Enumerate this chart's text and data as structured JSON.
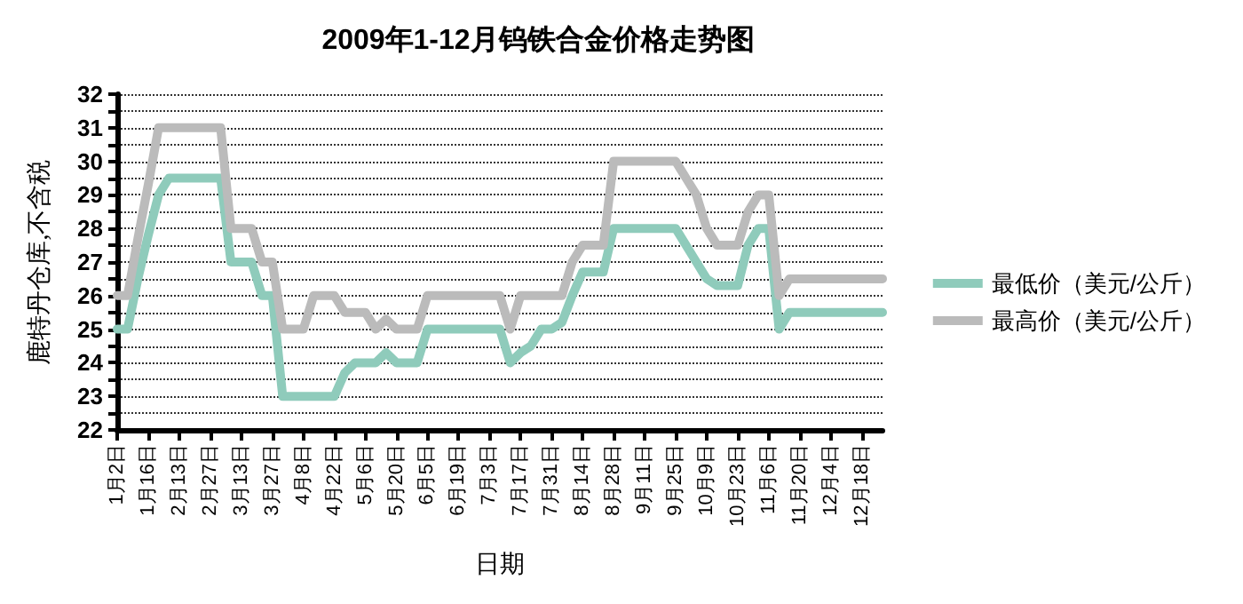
{
  "chart_data": {
    "type": "line",
    "title": "2009年1-12月钨铁合金价格走势图",
    "xlabel": "日期",
    "ylabel": "鹿特丹仓库,不含税",
    "categories": [
      "1月2日",
      null,
      null,
      "1月16日",
      null,
      null,
      "2月13日",
      null,
      null,
      "2月27日",
      null,
      null,
      "3月13日",
      null,
      null,
      "3月27日",
      null,
      null,
      "4月8日",
      null,
      null,
      "4月22日",
      null,
      null,
      "5月6日",
      null,
      null,
      "5月20日",
      null,
      null,
      "6月5日",
      null,
      null,
      "6月19日",
      null,
      null,
      "7月3日",
      null,
      null,
      "7月17日",
      null,
      null,
      "7月31日",
      null,
      null,
      "8月14日",
      null,
      null,
      "8月28日",
      null,
      null,
      "9月11日",
      null,
      null,
      "9月25日",
      null,
      null,
      "10月9日",
      null,
      null,
      "10月23日",
      null,
      null,
      "11月6日",
      null,
      null,
      "11月20日",
      null,
      null,
      "12月4日",
      null,
      null,
      "12月18日",
      null,
      null
    ],
    "series": [
      {
        "name": "最低价（美元/公斤）",
        "color": "#8fcbbb",
        "values": [
          25,
          25,
          26.5,
          27.8,
          29,
          29.5,
          29.5,
          29.5,
          29.5,
          29.5,
          29.5,
          27,
          27,
          27,
          26,
          26,
          23,
          23,
          23,
          23,
          23,
          23,
          23.7,
          24,
          24,
          24,
          24.3,
          24,
          24,
          24,
          25,
          25,
          25,
          25,
          25,
          25,
          25,
          25,
          24,
          24.3,
          24.5,
          25,
          25,
          25.2,
          26,
          26.7,
          26.7,
          26.7,
          28,
          28,
          28,
          28,
          28,
          28,
          28,
          27.5,
          27,
          26.5,
          26.3,
          26.3,
          26.3,
          27.5,
          28,
          28,
          25,
          25.5,
          25.5,
          25.5,
          25.5,
          25.5,
          25.5,
          25.5,
          25.5,
          25.5,
          25.5
        ]
      },
      {
        "name": "最高价（美元/公斤）",
        "color": "#bbbbbb",
        "values": [
          26,
          26,
          27.7,
          29.3,
          31,
          31,
          31,
          31,
          31,
          31,
          31,
          28,
          28,
          28,
          27,
          27,
          25,
          25,
          25,
          26,
          26,
          26,
          25.5,
          25.5,
          25.5,
          25,
          25.3,
          25,
          25,
          25,
          26,
          26,
          26,
          26,
          26,
          26,
          26,
          26,
          25,
          26,
          26,
          26,
          26,
          26,
          27,
          27.5,
          27.5,
          27.5,
          30,
          30,
          30,
          30,
          30,
          30,
          30,
          29.5,
          29,
          28,
          27.5,
          27.5,
          27.5,
          28.5,
          29,
          29,
          26,
          26.5,
          26.5,
          26.5,
          26.5,
          26.5,
          26.5,
          26.5,
          26.5,
          26.5,
          26.5
        ]
      }
    ],
    "ylim": [
      22,
      32
    ],
    "yticks": [
      22,
      {
        "value": 22.5,
        "label": null
      },
      23,
      {
        "value": 23.5,
        "label": null
      },
      24,
      {
        "value": 24.5,
        "label": null
      },
      25,
      {
        "value": 25.5,
        "label": null
      },
      26,
      {
        "value": 26.5,
        "label": null
      },
      27,
      {
        "value": 27.5,
        "label": null
      },
      28,
      {
        "value": 28.5,
        "label": null
      },
      29,
      {
        "value": 29.5,
        "label": null
      },
      30,
      {
        "value": 30.5,
        "label": null
      },
      31,
      {
        "value": 31.5,
        "label": null
      },
      32
    ],
    "grid": "y",
    "legend": "right",
    "marker": "none",
    "line_style": "solid"
  }
}
